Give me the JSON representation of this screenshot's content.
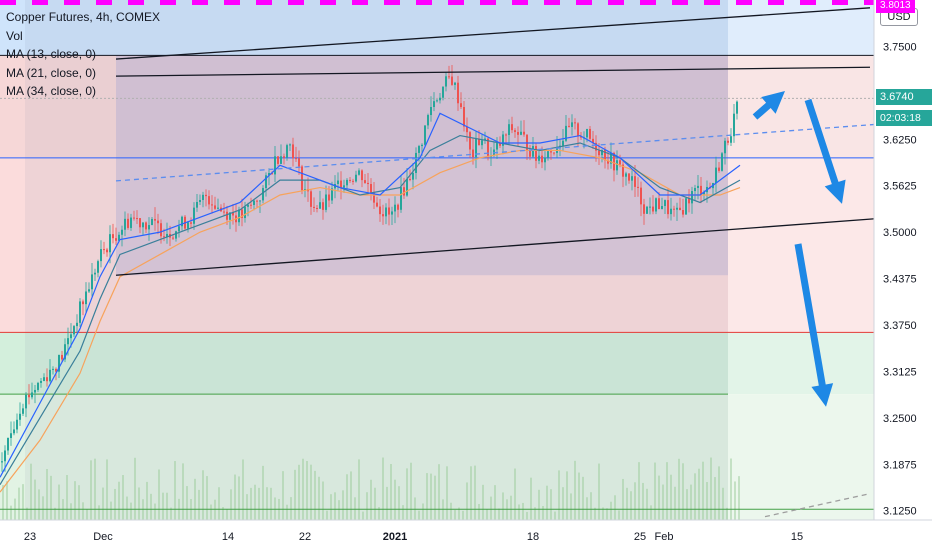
{
  "header": {
    "title": "Copper Futures, 4h, COMEX",
    "volume_label": "Vol",
    "ma_labels": [
      "MA (13, close, 0)",
      "MA (21, close, 0)",
      "MA (34, close, 0)"
    ],
    "currency": "USD",
    "top_price_label": "3.8013"
  },
  "price_badge": {
    "value": "3.6740",
    "countdown": "02:03:18",
    "color": "#26a69a"
  },
  "colors": {
    "candle_up": "#26a69a",
    "candle_down": "#ef5350",
    "ma13": "#2962ff",
    "ma21": "#3a7f9a",
    "ma34": "#f7a35c",
    "arrow": "#1e88e5",
    "magenta": "#ff00ff"
  },
  "chart_data": {
    "type": "candlestick",
    "y_axis": {
      "range": [
        3.1125,
        3.8125
      ],
      "ticks": [
        "3.7500",
        "3.6875",
        "3.6250",
        "3.5625",
        "3.5000",
        "3.4375",
        "3.3750",
        "3.3125",
        "3.2500",
        "3.1875",
        "3.1250"
      ]
    },
    "x_axis": {
      "ticks": [
        {
          "label": "23",
          "bold": false
        },
        {
          "label": "Dec",
          "bold": false
        },
        {
          "label": "14",
          "bold": false
        },
        {
          "label": "22",
          "bold": false
        },
        {
          "label": "2021",
          "bold": true
        },
        {
          "label": "18",
          "bold": false
        },
        {
          "label": "25",
          "bold": false
        },
        {
          "label": "Feb",
          "bold": false
        },
        {
          "label": "15",
          "bold": false
        }
      ]
    },
    "price_path": [
      [
        0,
        3.19
      ],
      [
        20,
        3.27
      ],
      [
        40,
        3.3
      ],
      [
        60,
        3.33
      ],
      [
        80,
        3.4
      ],
      [
        100,
        3.47
      ],
      [
        110,
        3.49
      ],
      [
        130,
        3.52
      ],
      [
        150,
        3.51
      ],
      [
        170,
        3.5
      ],
      [
        190,
        3.52
      ],
      [
        205,
        3.55
      ],
      [
        220,
        3.53
      ],
      [
        240,
        3.52
      ],
      [
        260,
        3.55
      ],
      [
        275,
        3.6
      ],
      [
        290,
        3.62
      ],
      [
        300,
        3.57
      ],
      [
        310,
        3.54
      ],
      [
        320,
        3.53
      ],
      [
        340,
        3.57
      ],
      [
        360,
        3.58
      ],
      [
        380,
        3.53
      ],
      [
        390,
        3.52
      ],
      [
        400,
        3.55
      ],
      [
        410,
        3.58
      ],
      [
        420,
        3.62
      ],
      [
        430,
        3.67
      ],
      [
        440,
        3.69
      ],
      [
        450,
        3.71
      ],
      [
        460,
        3.67
      ],
      [
        470,
        3.6
      ],
      [
        480,
        3.63
      ],
      [
        490,
        3.6
      ],
      [
        500,
        3.62
      ],
      [
        510,
        3.64
      ],
      [
        520,
        3.63
      ],
      [
        535,
        3.6
      ],
      [
        550,
        3.61
      ],
      [
        570,
        3.64
      ],
      [
        585,
        3.63
      ],
      [
        600,
        3.61
      ],
      [
        615,
        3.59
      ],
      [
        630,
        3.57
      ],
      [
        645,
        3.53
      ],
      [
        660,
        3.54
      ],
      [
        675,
        3.52
      ],
      [
        690,
        3.55
      ],
      [
        700,
        3.56
      ],
      [
        710,
        3.56
      ],
      [
        720,
        3.6
      ],
      [
        730,
        3.64
      ],
      [
        738,
        3.674
      ]
    ],
    "lines": {
      "ma13": [
        [
          0,
          3.17
        ],
        [
          40,
          3.27
        ],
        [
          80,
          3.37
        ],
        [
          100,
          3.44
        ],
        [
          120,
          3.49
        ],
        [
          160,
          3.5
        ],
        [
          200,
          3.52
        ],
        [
          240,
          3.54
        ],
        [
          280,
          3.59
        ],
        [
          300,
          3.58
        ],
        [
          340,
          3.56
        ],
        [
          380,
          3.55
        ],
        [
          420,
          3.6
        ],
        [
          440,
          3.66
        ],
        [
          470,
          3.64
        ],
        [
          500,
          3.62
        ],
        [
          540,
          3.62
        ],
        [
          580,
          3.63
        ],
        [
          620,
          3.6
        ],
        [
          660,
          3.55
        ],
        [
          700,
          3.55
        ],
        [
          740,
          3.59
        ]
      ],
      "ma21": [
        [
          0,
          3.16
        ],
        [
          40,
          3.25
        ],
        [
          80,
          3.34
        ],
        [
          100,
          3.41
        ],
        [
          120,
          3.47
        ],
        [
          160,
          3.49
        ],
        [
          200,
          3.51
        ],
        [
          240,
          3.53
        ],
        [
          280,
          3.57
        ],
        [
          320,
          3.57
        ],
        [
          360,
          3.55
        ],
        [
          400,
          3.56
        ],
        [
          430,
          3.61
        ],
        [
          460,
          3.63
        ],
        [
          500,
          3.62
        ],
        [
          540,
          3.61
        ],
        [
          580,
          3.62
        ],
        [
          620,
          3.6
        ],
        [
          660,
          3.56
        ],
        [
          700,
          3.54
        ],
        [
          740,
          3.57
        ]
      ],
      "ma34": [
        [
          0,
          3.15
        ],
        [
          40,
          3.22
        ],
        [
          80,
          3.31
        ],
        [
          100,
          3.38
        ],
        [
          120,
          3.44
        ],
        [
          160,
          3.47
        ],
        [
          200,
          3.5
        ],
        [
          240,
          3.52
        ],
        [
          280,
          3.55
        ],
        [
          320,
          3.56
        ],
        [
          360,
          3.55
        ],
        [
          400,
          3.55
        ],
        [
          440,
          3.58
        ],
        [
          480,
          3.6
        ],
        [
          520,
          3.61
        ],
        [
          560,
          3.61
        ],
        [
          600,
          3.6
        ],
        [
          640,
          3.58
        ],
        [
          680,
          3.55
        ],
        [
          720,
          3.55
        ],
        [
          740,
          3.56
        ]
      ]
    },
    "trendlines": [
      {
        "name": "upper-channel",
        "from": [
          116,
          3.71
        ],
        "to": [
          870,
          3.722
        ],
        "color": "#131722"
      },
      {
        "name": "outer-upper",
        "from": [
          116,
          3.733
        ],
        "to": [
          870,
          3.802
        ],
        "color": "#131722"
      },
      {
        "name": "lower-channel",
        "from": [
          116,
          3.442
        ],
        "to": [
          875,
          3.518
        ],
        "color": "#131722"
      },
      {
        "name": "mid-dashed",
        "from": [
          116,
          3.569
        ],
        "to": [
          875,
          3.645
        ],
        "color": "#5b8def",
        "dashed": true
      },
      {
        "name": "bottom-dashed",
        "from": [
          765,
          3.117
        ],
        "to": [
          870,
          3.148
        ],
        "color": "#9e9e9e",
        "dashed": true
      }
    ],
    "horizontal_lines": [
      {
        "name": "level-top",
        "y": 3.738,
        "color": "#131722"
      },
      {
        "name": "level-mid",
        "y": 3.6,
        "color": "#2962ff"
      },
      {
        "name": "level-red",
        "y": 3.365,
        "color": "#e53935"
      },
      {
        "name": "level-green",
        "y": 3.282,
        "color": "#43a047"
      },
      {
        "name": "level-bottom",
        "y": 3.127,
        "color": "#43a047"
      },
      {
        "name": "level-dotted",
        "y": 3.68,
        "color": "#b0b0b0",
        "dotted": true
      }
    ],
    "arrows": [
      {
        "name": "arrow-up",
        "from": [
          755,
          3.655
        ],
        "to": [
          785,
          3.69
        ]
      },
      {
        "name": "arrow-down-1",
        "from": [
          808,
          3.678
        ],
        "to": [
          842,
          3.538
        ]
      },
      {
        "name": "arrow-down-2",
        "from": [
          798,
          3.484
        ],
        "to": [
          826,
          3.265
        ]
      }
    ]
  }
}
